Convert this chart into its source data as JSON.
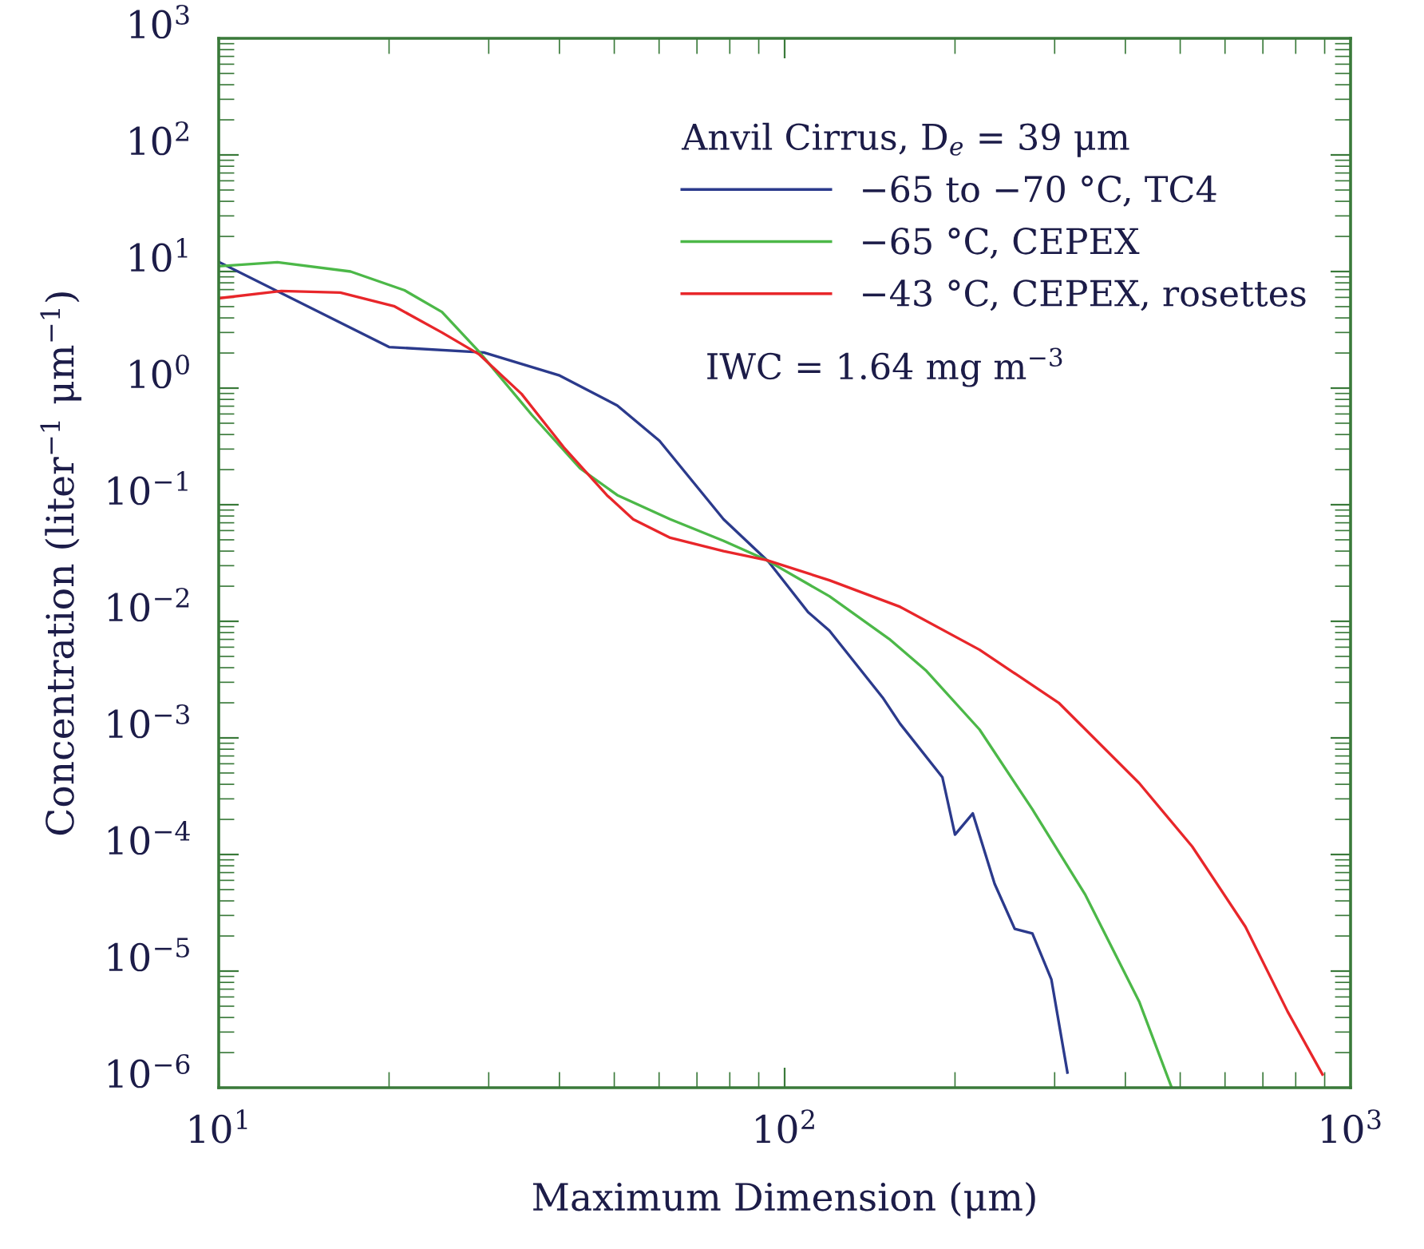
{
  "chart_data": {
    "type": "line",
    "xlabel": "Maximum Dimension (μm)",
    "ylabel": "Concentration (liter$^{−1}$ μm$^{−1}$)",
    "legend_title": "Anvil Cirrus, D$_{e}$ = 39 μm",
    "annotations": [
      "IWC = 1.64 mg m$^{−3}$"
    ],
    "log": "xy",
    "xlim": [
      10,
      1000
    ],
    "ylim": [
      1e-06,
      1000
    ],
    "xticks": [
      {
        "value": 10,
        "label": "10$^{1}$"
      },
      {
        "value": 100,
        "label": "10$^{2}$"
      },
      {
        "value": 1000,
        "label": "10$^{3}$"
      }
    ],
    "yticks": [
      {
        "value": 1e-06,
        "label": "10$^{−6}$"
      },
      {
        "value": 1e-05,
        "label": "10$^{−5}$"
      },
      {
        "value": 0.0001,
        "label": "10$^{−4}$"
      },
      {
        "value": 0.001,
        "label": "10$^{−3}$"
      },
      {
        "value": 0.01,
        "label": "10$^{−2}$"
      },
      {
        "value": 0.1,
        "label": "10$^{−1}$"
      },
      {
        "value": 1,
        "label": "10$^{0}$"
      },
      {
        "value": 10,
        "label": "10$^{1}$"
      },
      {
        "value": 100,
        "label": "10$^{2}$"
      },
      {
        "value": 1000,
        "label": "10$^{3}$"
      }
    ],
    "grid": false,
    "legend": "top right",
    "marker": "none",
    "line_style": "solid",
    "series": [
      {
        "name": "−65 to −70 °C, TC4",
        "color": "#2b3a8c",
        "x": [
          10,
          20,
          29.4,
          39.9,
          50.6,
          60.1,
          78,
          93.7,
          110,
          120,
          149,
          160,
          190,
          200,
          215,
          235,
          255,
          274,
          296,
          316
        ],
        "values": [
          12.1,
          2.25,
          2.02,
          1.29,
          0.71,
          0.353,
          0.075,
          0.0324,
          0.012,
          0.0083,
          0.00222,
          0.00132,
          0.00046,
          0.000148,
          0.000225,
          5.6e-05,
          2.3e-05,
          2.1e-05,
          8.5e-06,
          1.35e-06
        ]
      },
      {
        "name": "−65 °C, CEPEX",
        "color": "#4cb848",
        "x": [
          10,
          12.7,
          17.1,
          21.3,
          24.8,
          28.8,
          35.8,
          43.5,
          50.6,
          62.8,
          78,
          92.9,
          120,
          153,
          178,
          221,
          274,
          340,
          423,
          483
        ],
        "values": [
          11.1,
          12,
          10,
          6.9,
          4.5,
          2.07,
          0.585,
          0.205,
          0.121,
          0.075,
          0.049,
          0.0335,
          0.0164,
          0.00706,
          0.00376,
          0.00118,
          0.000244,
          4.5e-05,
          5.5e-06,
          1e-06
        ]
      },
      {
        "name": "−43 °C, CEPEX, rosettes",
        "color": "#e8262a",
        "x": [
          10,
          12.9,
          16.4,
          20.4,
          24.8,
          28.8,
          34.3,
          40.7,
          48.5,
          54,
          62.8,
          78,
          92.9,
          120,
          160,
          221,
          305,
          423,
          525,
          652,
          774,
          892
        ],
        "values": [
          5.9,
          6.8,
          6.6,
          5.05,
          3.0,
          1.96,
          0.89,
          0.311,
          0.121,
          0.075,
          0.052,
          0.04,
          0.0335,
          0.0225,
          0.0133,
          0.0057,
          0.002,
          0.00041,
          0.000117,
          2.4e-05,
          4.5e-06,
          1.3e-06
        ]
      }
    ]
  }
}
